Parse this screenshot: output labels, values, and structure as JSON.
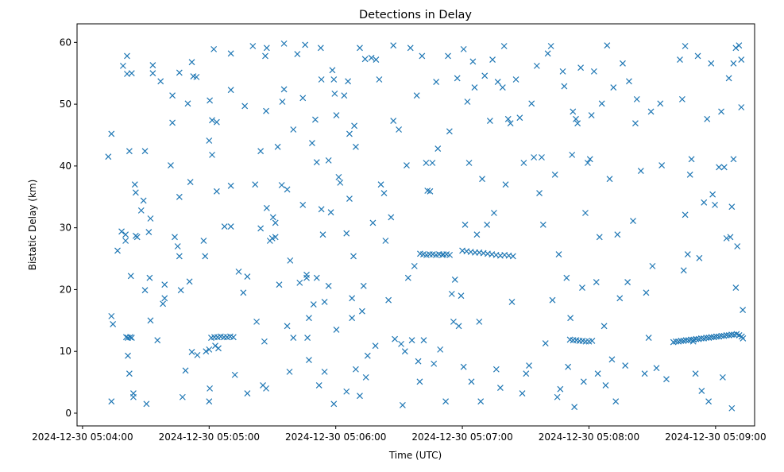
{
  "chart_data": {
    "type": "scatter",
    "title": "Detections in Delay",
    "xlabel": "Time (UTC)",
    "ylabel": "Bistatic Delay (km)",
    "x_units": "seconds after 2024-12-30 05:04:00",
    "xlim": [
      -2.6,
      318.5
    ],
    "ylim": [
      -2.06,
      63.0
    ],
    "x_ticks": [
      0,
      60,
      120,
      180,
      240,
      300
    ],
    "x_tick_labels": [
      "2024-12-30 05:04:00",
      "2024-12-30 05:05:00",
      "2024-12-30 05:06:00",
      "2024-12-30 05:07:00",
      "2024-12-30 05:08:00",
      "2024-12-30 05:09:00"
    ],
    "y_ticks": [
      0,
      10,
      20,
      30,
      40,
      50,
      60
    ],
    "y_tick_labels": [
      "0",
      "10",
      "20",
      "30",
      "40",
      "50",
      "60"
    ],
    "grid": false,
    "marker": "x",
    "color": "#1f77b4",
    "points": [
      [
        12.2,
        41.5
      ],
      [
        13.7,
        45.2
      ],
      [
        13.7,
        15.7
      ],
      [
        14.4,
        14.4
      ],
      [
        13.7,
        1.9
      ],
      [
        16.6,
        26.3
      ],
      [
        18.5,
        29.4
      ],
      [
        19.2,
        56.2
      ],
      [
        20.4,
        27.9
      ],
      [
        20.4,
        28.9
      ],
      [
        21.1,
        57.8
      ],
      [
        21.1,
        54.9
      ],
      [
        21.5,
        9.3
      ],
      [
        22.2,
        6.4
      ],
      [
        22.2,
        42.4
      ],
      [
        22.9,
        22.2
      ],
      [
        23.3,
        55.0
      ],
      [
        24.1,
        3.2
      ],
      [
        24.1,
        2.6
      ],
      [
        24.8,
        37.0
      ],
      [
        25.2,
        35.7
      ],
      [
        25.2,
        28.7
      ],
      [
        25.9,
        28.5
      ],
      [
        27.8,
        32.8
      ],
      [
        28.9,
        34.4
      ],
      [
        29.6,
        42.4
      ],
      [
        29.6,
        19.9
      ],
      [
        30.3,
        1.5
      ],
      [
        31.4,
        29.3
      ],
      [
        32.2,
        15.0
      ],
      [
        32.2,
        31.5
      ],
      [
        31.8,
        21.9
      ],
      [
        33.3,
        56.3
      ],
      [
        33.3,
        55.0
      ],
      [
        35.5,
        11.8
      ],
      [
        37.0,
        53.7
      ],
      [
        38.1,
        17.7
      ],
      [
        38.9,
        20.8
      ],
      [
        38.9,
        18.6
      ],
      [
        41.8,
        40.1
      ],
      [
        42.6,
        51.4
      ],
      [
        42.6,
        47.0
      ],
      [
        43.7,
        28.5
      ],
      [
        45.1,
        27.0
      ],
      [
        45.9,
        55.1
      ],
      [
        45.9,
        35.0
      ],
      [
        45.9,
        25.4
      ],
      [
        46.6,
        19.9
      ],
      [
        47.4,
        2.6
      ],
      [
        48.8,
        6.9
      ],
      [
        49.9,
        50.1
      ],
      [
        50.7,
        21.3
      ],
      [
        51.1,
        37.4
      ],
      [
        51.8,
        56.8
      ],
      [
        52.5,
        54.5
      ],
      [
        54.0,
        54.4
      ],
      [
        51.8,
        9.9
      ],
      [
        54.4,
        9.4
      ],
      [
        57.4,
        27.9
      ],
      [
        58.1,
        25.4
      ],
      [
        58.5,
        10.0
      ],
      [
        60.0,
        1.9
      ],
      [
        60.0,
        10.3
      ],
      [
        60.3,
        4.0
      ],
      [
        60.0,
        44.1
      ],
      [
        60.3,
        50.6
      ],
      [
        61.4,
        41.8
      ],
      [
        61.4,
        47.4
      ],
      [
        62.2,
        58.9
      ],
      [
        62.9,
        10.9
      ],
      [
        63.6,
        47.1
      ],
      [
        63.6,
        35.9
      ],
      [
        64.4,
        10.5
      ],
      [
        67.3,
        30.2
      ],
      [
        70.3,
        30.2
      ],
      [
        70.3,
        58.2
      ],
      [
        70.3,
        36.8
      ],
      [
        70.3,
        52.3
      ],
      [
        72.2,
        6.2
      ],
      [
        74.0,
        22.9
      ],
      [
        76.2,
        19.5
      ],
      [
        76.9,
        49.7
      ],
      [
        78.1,
        3.2
      ],
      [
        78.1,
        22.1
      ],
      [
        80.7,
        59.4
      ],
      [
        81.8,
        37.0
      ],
      [
        82.5,
        14.8
      ],
      [
        84.4,
        42.4
      ],
      [
        84.4,
        29.9
      ],
      [
        85.5,
        4.5
      ],
      [
        86.2,
        11.6
      ],
      [
        86.6,
        57.8
      ],
      [
        87.0,
        48.9
      ],
      [
        87.3,
        59.1
      ],
      [
        87.0,
        4.0
      ],
      [
        87.3,
        33.2
      ],
      [
        88.8,
        27.9
      ],
      [
        89.9,
        28.3
      ],
      [
        91.4,
        28.5
      ],
      [
        90.3,
        31.7
      ],
      [
        91.4,
        30.8
      ],
      [
        92.5,
        43.1
      ],
      [
        93.2,
        20.8
      ],
      [
        94.7,
        50.4
      ],
      [
        95.5,
        52.4
      ],
      [
        94.4,
        36.9
      ],
      [
        95.5,
        59.8
      ],
      [
        97.0,
        36.2
      ],
      [
        97.0,
        14.1
      ],
      [
        98.1,
        6.7
      ],
      [
        98.4,
        24.7
      ],
      [
        99.9,
        45.9
      ],
      [
        99.9,
        12.2
      ],
      [
        101.8,
        58.1
      ],
      [
        102.9,
        21.1
      ],
      [
        104.4,
        51.0
      ],
      [
        104.4,
        33.7
      ],
      [
        105.5,
        59.6
      ],
      [
        106.2,
        22.4
      ],
      [
        106.2,
        21.9
      ],
      [
        106.6,
        12.2
      ],
      [
        107.3,
        8.6
      ],
      [
        107.3,
        15.4
      ],
      [
        108.8,
        43.7
      ],
      [
        109.5,
        17.6
      ],
      [
        110.3,
        47.5
      ],
      [
        111.0,
        40.6
      ],
      [
        111.0,
        21.9
      ],
      [
        112.1,
        4.5
      ],
      [
        112.9,
        59.1
      ],
      [
        113.2,
        54.0
      ],
      [
        113.2,
        33.0
      ],
      [
        113.9,
        28.9
      ],
      [
        114.7,
        18.0
      ],
      [
        114.7,
        6.7
      ],
      [
        116.6,
        40.9
      ],
      [
        116.6,
        20.6
      ],
      [
        117.7,
        32.5
      ],
      [
        118.4,
        55.5
      ],
      [
        119.1,
        54.0
      ],
      [
        119.1,
        1.5
      ],
      [
        119.5,
        51.7
      ],
      [
        120.3,
        13.5
      ],
      [
        120.3,
        48.2
      ],
      [
        121.4,
        38.2
      ],
      [
        122.1,
        37.3
      ],
      [
        124.0,
        51.4
      ],
      [
        125.1,
        29.1
      ],
      [
        125.1,
        3.5
      ],
      [
        125.8,
        53.7
      ],
      [
        126.5,
        45.2
      ],
      [
        126.5,
        34.7
      ],
      [
        127.7,
        18.6
      ],
      [
        127.7,
        15.4
      ],
      [
        128.4,
        25.4
      ],
      [
        128.8,
        46.5
      ],
      [
        129.5,
        7.1
      ],
      [
        129.5,
        43.1
      ],
      [
        131.4,
        2.8
      ],
      [
        131.4,
        59.1
      ],
      [
        132.5,
        16.5
      ],
      [
        133.2,
        20.6
      ],
      [
        133.9,
        57.3
      ],
      [
        134.3,
        5.8
      ],
      [
        135.1,
        9.3
      ],
      [
        136.9,
        57.5
      ],
      [
        137.6,
        30.8
      ],
      [
        139.1,
        57.2
      ],
      [
        138.8,
        10.9
      ],
      [
        140.6,
        54.0
      ],
      [
        141.4,
        37.0
      ],
      [
        142.9,
        35.6
      ],
      [
        143.6,
        27.9
      ],
      [
        145.0,
        18.3
      ],
      [
        146.2,
        31.7
      ],
      [
        147.3,
        59.5
      ],
      [
        147.3,
        47.3
      ],
      [
        148.0,
        12.0
      ],
      [
        149.9,
        45.9
      ],
      [
        151.0,
        11.2
      ],
      [
        151.7,
        1.3
      ],
      [
        152.8,
        10.0
      ],
      [
        153.6,
        40.1
      ],
      [
        154.3,
        21.9
      ],
      [
        155.4,
        59.1
      ],
      [
        156.1,
        11.8
      ],
      [
        157.3,
        23.8
      ],
      [
        158.4,
        51.4
      ],
      [
        159.1,
        8.4
      ],
      [
        159.8,
        5.1
      ],
      [
        160.9,
        57.8
      ],
      [
        161.7,
        11.8
      ],
      [
        162.8,
        40.5
      ],
      [
        163.5,
        36.0
      ],
      [
        164.7,
        35.9
      ],
      [
        165.8,
        40.5
      ],
      [
        166.5,
        8.0
      ],
      [
        167.6,
        53.6
      ],
      [
        168.4,
        42.8
      ],
      [
        169.5,
        10.3
      ],
      [
        171.0,
        25.7
      ],
      [
        172.1,
        1.9
      ],
      [
        173.2,
        57.8
      ],
      [
        173.9,
        45.6
      ],
      [
        175.0,
        19.3
      ],
      [
        175.8,
        14.8
      ],
      [
        176.5,
        21.6
      ],
      [
        177.6,
        54.2
      ],
      [
        178.3,
        14.1
      ],
      [
        179.4,
        19.0
      ],
      [
        180.6,
        58.9
      ],
      [
        180.6,
        7.5
      ],
      [
        181.3,
        30.5
      ],
      [
        182.4,
        50.4
      ],
      [
        183.2,
        40.5
      ],
      [
        184.3,
        5.1
      ],
      [
        185.0,
        56.9
      ],
      [
        185.8,
        52.7
      ],
      [
        186.9,
        28.9
      ],
      [
        188.0,
        14.8
      ],
      [
        188.7,
        1.9
      ],
      [
        189.4,
        37.9
      ],
      [
        190.6,
        54.6
      ],
      [
        191.7,
        30.5
      ],
      [
        193.1,
        47.3
      ],
      [
        194.3,
        57.2
      ],
      [
        195.0,
        32.4
      ],
      [
        196.1,
        7.1
      ],
      [
        196.8,
        53.6
      ],
      [
        198.0,
        4.1
      ],
      [
        199.1,
        52.7
      ],
      [
        199.8,
        59.4
      ],
      [
        200.5,
        37.0
      ],
      [
        201.7,
        47.6
      ],
      [
        202.8,
        46.9
      ],
      [
        203.5,
        18.0
      ],
      [
        205.4,
        54.0
      ],
      [
        207.2,
        47.8
      ],
      [
        208.4,
        3.2
      ],
      [
        209.1,
        40.5
      ],
      [
        210.2,
        6.4
      ],
      [
        211.6,
        7.7
      ],
      [
        212.8,
        50.1
      ],
      [
        213.9,
        41.4
      ],
      [
        215.3,
        56.2
      ],
      [
        216.5,
        35.6
      ],
      [
        217.6,
        41.4
      ],
      [
        218.3,
        30.5
      ],
      [
        219.4,
        11.3
      ],
      [
        220.5,
        58.2
      ],
      [
        222.0,
        59.4
      ],
      [
        222.7,
        18.3
      ],
      [
        223.9,
        38.6
      ],
      [
        225.0,
        2.6
      ],
      [
        225.7,
        25.7
      ],
      [
        226.4,
        3.9
      ],
      [
        227.6,
        55.3
      ],
      [
        228.3,
        52.9
      ],
      [
        229.4,
        21.9
      ],
      [
        230.1,
        7.5
      ],
      [
        231.2,
        15.4
      ],
      [
        232.0,
        41.8
      ],
      [
        232.4,
        48.8
      ],
      [
        233.1,
        1.0
      ],
      [
        233.8,
        47.6
      ],
      [
        234.6,
        46.9
      ],
      [
        236.1,
        55.9
      ],
      [
        236.8,
        20.3
      ],
      [
        237.5,
        5.1
      ],
      [
        238.3,
        32.4
      ],
      [
        239.4,
        40.5
      ],
      [
        240.5,
        41.1
      ],
      [
        241.2,
        48.2
      ],
      [
        242.4,
        55.3
      ],
      [
        243.5,
        21.2
      ],
      [
        244.2,
        6.4
      ],
      [
        245.0,
        28.5
      ],
      [
        246.1,
        50.1
      ],
      [
        247.2,
        14.1
      ],
      [
        247.9,
        4.5
      ],
      [
        248.6,
        59.5
      ],
      [
        249.8,
        37.9
      ],
      [
        250.9,
        8.7
      ],
      [
        251.6,
        52.7
      ],
      [
        252.7,
        1.9
      ],
      [
        253.5,
        28.9
      ],
      [
        254.6,
        18.6
      ],
      [
        256.0,
        56.6
      ],
      [
        257.2,
        7.7
      ],
      [
        258.3,
        21.2
      ],
      [
        259.0,
        53.7
      ],
      [
        260.9,
        31.1
      ],
      [
        262.0,
        46.9
      ],
      [
        262.7,
        50.8
      ],
      [
        264.6,
        39.2
      ],
      [
        266.4,
        6.4
      ],
      [
        267.1,
        19.5
      ],
      [
        268.3,
        12.2
      ],
      [
        269.4,
        48.8
      ],
      [
        270.1,
        23.8
      ],
      [
        272.0,
        7.3
      ],
      [
        273.8,
        50.1
      ],
      [
        274.5,
        40.1
      ],
      [
        276.7,
        5.5
      ],
      [
        283.1,
        57.2
      ],
      [
        284.2,
        50.8
      ],
      [
        284.9,
        23.1
      ],
      [
        285.6,
        59.4
      ],
      [
        285.6,
        32.1
      ],
      [
        286.8,
        25.7
      ],
      [
        287.9,
        38.6
      ],
      [
        288.6,
        41.1
      ],
      [
        289.4,
        11.6
      ],
      [
        290.5,
        6.4
      ],
      [
        291.6,
        57.8
      ],
      [
        292.3,
        25.1
      ],
      [
        293.4,
        3.6
      ],
      [
        294.5,
        34.1
      ],
      [
        296.0,
        47.6
      ],
      [
        296.7,
        1.9
      ],
      [
        297.9,
        56.6
      ],
      [
        298.6,
        35.4
      ],
      [
        299.7,
        33.7
      ],
      [
        301.6,
        39.8
      ],
      [
        302.7,
        48.8
      ],
      [
        303.4,
        5.8
      ],
      [
        304.1,
        39.8
      ],
      [
        305.2,
        28.3
      ],
      [
        306.3,
        54.2
      ],
      [
        307.0,
        28.5
      ],
      [
        307.7,
        33.4
      ],
      [
        308.5,
        41.1
      ],
      [
        308.5,
        56.6
      ],
      [
        309.6,
        59.1
      ],
      [
        309.6,
        20.3
      ],
      [
        310.3,
        27.0
      ],
      [
        311.1,
        59.5
      ],
      [
        312.2,
        57.2
      ],
      [
        312.2,
        49.5
      ],
      [
        312.9,
        16.7
      ],
      [
        307.7,
        0.8
      ],
      [
        20.7,
        12.3
      ],
      [
        21.5,
        12.2
      ],
      [
        22.6,
        12.3
      ],
      [
        23.3,
        12.2
      ],
      [
        61.0,
        12.2
      ],
      [
        62.5,
        12.3
      ],
      [
        64.0,
        12.3
      ],
      [
        65.5,
        12.4
      ],
      [
        67.0,
        12.3
      ],
      [
        68.5,
        12.3
      ],
      [
        70.0,
        12.4
      ],
      [
        71.5,
        12.3
      ],
      [
        160.0,
        25.8
      ],
      [
        161.5,
        25.7
      ],
      [
        163.0,
        25.6
      ],
      [
        164.5,
        25.7
      ],
      [
        166.0,
        25.7
      ],
      [
        167.5,
        25.6
      ],
      [
        169.0,
        25.7
      ],
      [
        170.5,
        25.6
      ],
      [
        172.5,
        25.7
      ],
      [
        174.0,
        25.6
      ],
      [
        180.0,
        26.3
      ],
      [
        182.0,
        26.2
      ],
      [
        184.0,
        26.1
      ],
      [
        186.0,
        26.0
      ],
      [
        188.0,
        26.0
      ],
      [
        190.0,
        25.9
      ],
      [
        192.0,
        25.8
      ],
      [
        194.0,
        25.7
      ],
      [
        196.0,
        25.6
      ],
      [
        198.0,
        25.5
      ],
      [
        200.0,
        25.6
      ],
      [
        202.0,
        25.5
      ],
      [
        204.0,
        25.4
      ],
      [
        231.0,
        11.9
      ],
      [
        232.5,
        11.8
      ],
      [
        234.0,
        11.8
      ],
      [
        235.5,
        11.7
      ],
      [
        237.0,
        11.7
      ],
      [
        238.5,
        11.6
      ],
      [
        240.0,
        11.6
      ],
      [
        241.5,
        11.7
      ],
      [
        280.0,
        11.5
      ],
      [
        281.2,
        11.6
      ],
      [
        282.4,
        11.6
      ],
      [
        283.6,
        11.7
      ],
      [
        284.8,
        11.7
      ],
      [
        286.0,
        11.8
      ],
      [
        287.2,
        11.8
      ],
      [
        288.4,
        11.9
      ],
      [
        289.6,
        11.9
      ],
      [
        290.8,
        12.0
      ],
      [
        292.0,
        12.0
      ],
      [
        293.2,
        12.1
      ],
      [
        294.4,
        12.1
      ],
      [
        295.6,
        12.2
      ],
      [
        296.8,
        12.2
      ],
      [
        298.0,
        12.3
      ],
      [
        299.2,
        12.3
      ],
      [
        300.4,
        12.4
      ],
      [
        301.6,
        12.4
      ],
      [
        302.8,
        12.5
      ],
      [
        304.0,
        12.5
      ],
      [
        305.2,
        12.6
      ],
      [
        306.4,
        12.6
      ],
      [
        307.6,
        12.7
      ],
      [
        308.8,
        12.7
      ],
      [
        310.0,
        12.8
      ],
      [
        311.2,
        12.6
      ],
      [
        312.4,
        12.4
      ],
      [
        313.0,
        12.1
      ]
    ]
  }
}
